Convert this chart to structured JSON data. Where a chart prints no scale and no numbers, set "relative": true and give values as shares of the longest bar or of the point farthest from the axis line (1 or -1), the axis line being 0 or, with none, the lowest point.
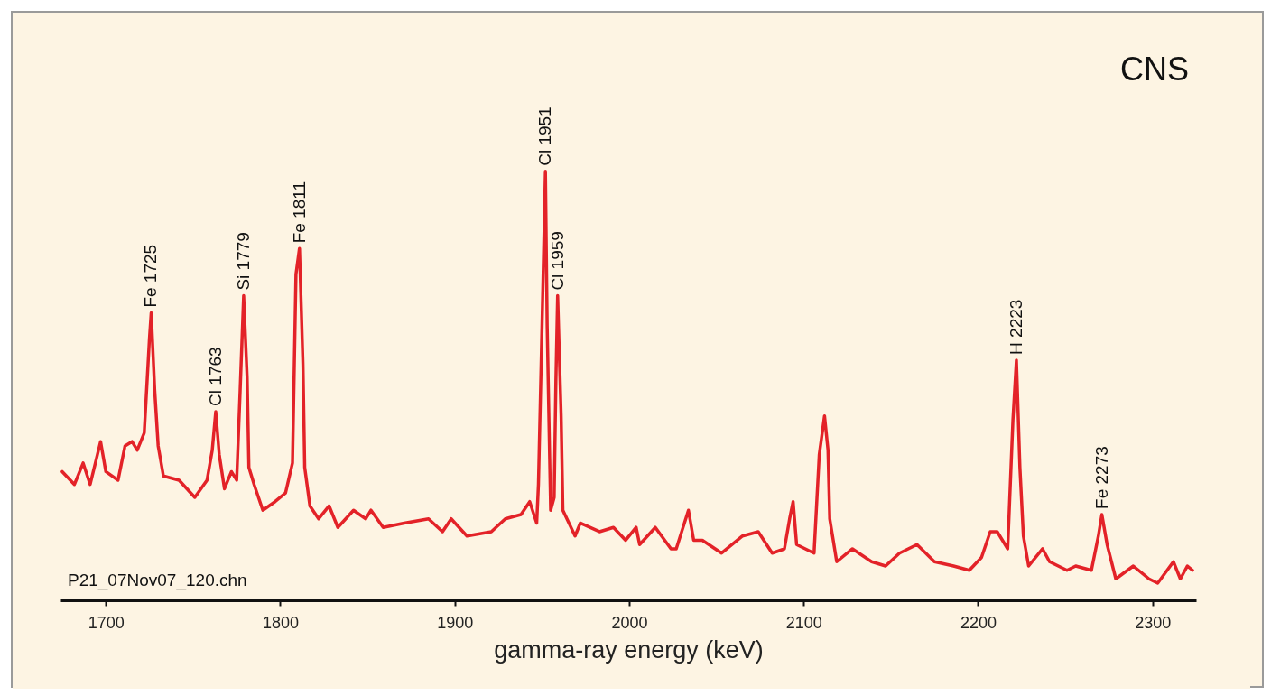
{
  "chart_data": {
    "type": "line",
    "title": "CNS",
    "xlabel": "gamma-ray energy (keV)",
    "relative": true,
    "xlim": [
      1674,
      2325
    ],
    "xticks": [
      1700,
      1800,
      1900,
      2000,
      2100,
      2200,
      2300
    ],
    "grid": false,
    "marker": "none",
    "line_style": "solid",
    "series": [
      {
        "color": "#e32228",
        "x": [
          1675,
          1682,
          1687,
          1691,
          1697,
          1700,
          1707,
          1711,
          1715,
          1718,
          1722,
          1725,
          1726,
          1728,
          1730,
          1733,
          1742,
          1751,
          1758,
          1761,
          1763,
          1765,
          1768,
          1772,
          1775,
          1777,
          1779,
          1781,
          1782,
          1785,
          1790,
          1797,
          1803,
          1807,
          1809,
          1811,
          1813,
          1814,
          1817,
          1822,
          1828,
          1833,
          1842,
          1849,
          1852,
          1859,
          1871,
          1885,
          1893,
          1898,
          1907,
          1921,
          1929,
          1938,
          1943,
          1947,
          1948,
          1950,
          1952,
          1953,
          1955,
          1957,
          1958,
          1959,
          1961,
          1962,
          1969,
          1972,
          1983,
          1991,
          1998,
          2004,
          2006,
          2015,
          2024,
          2027,
          2034,
          2037,
          2042,
          2053,
          2065,
          2074,
          2082,
          2089,
          2092,
          2094,
          2096,
          2106,
          2109,
          2112,
          2114,
          2115,
          2119,
          2128,
          2139,
          2147,
          2155,
          2165,
          2175,
          2186,
          2195,
          2202,
          2207,
          2211,
          2214,
          2217,
          2220,
          2222,
          2224,
          2226,
          2229,
          2237,
          2241,
          2251,
          2256,
          2265,
          2269,
          2271,
          2274,
          2279,
          2289,
          2298,
          2303,
          2312,
          2316,
          2320,
          2323
        ],
        "values": [
          0.3,
          0.27,
          0.32,
          0.27,
          0.37,
          0.3,
          0.28,
          0.36,
          0.37,
          0.35,
          0.39,
          0.61,
          0.67,
          0.49,
          0.36,
          0.29,
          0.28,
          0.24,
          0.28,
          0.35,
          0.44,
          0.34,
          0.26,
          0.3,
          0.28,
          0.49,
          0.71,
          0.52,
          0.31,
          0.27,
          0.21,
          0.23,
          0.25,
          0.32,
          0.76,
          0.82,
          0.55,
          0.31,
          0.22,
          0.19,
          0.22,
          0.17,
          0.21,
          0.19,
          0.21,
          0.17,
          0.18,
          0.19,
          0.16,
          0.19,
          0.15,
          0.16,
          0.19,
          0.2,
          0.23,
          0.18,
          0.27,
          0.63,
          1.0,
          0.64,
          0.21,
          0.24,
          0.51,
          0.71,
          0.43,
          0.21,
          0.15,
          0.18,
          0.16,
          0.17,
          0.14,
          0.17,
          0.13,
          0.17,
          0.12,
          0.12,
          0.21,
          0.14,
          0.14,
          0.11,
          0.15,
          0.16,
          0.11,
          0.12,
          0.19,
          0.23,
          0.13,
          0.11,
          0.34,
          0.43,
          0.35,
          0.19,
          0.09,
          0.12,
          0.09,
          0.08,
          0.11,
          0.13,
          0.09,
          0.08,
          0.07,
          0.1,
          0.16,
          0.16,
          0.14,
          0.12,
          0.42,
          0.56,
          0.31,
          0.15,
          0.08,
          0.12,
          0.09,
          0.07,
          0.08,
          0.07,
          0.15,
          0.2,
          0.13,
          0.05,
          0.08,
          0.05,
          0.04,
          0.09,
          0.05,
          0.08,
          0.07
        ]
      }
    ],
    "annotations": [
      {
        "text": "Fe 1725",
        "x": 1726,
        "y": 0.67
      },
      {
        "text": "Cl 1763",
        "x": 1763,
        "y": 0.44
      },
      {
        "text": "Si 1779",
        "x": 1779,
        "y": 0.71
      },
      {
        "text": "Fe 1811",
        "x": 1811,
        "y": 0.82
      },
      {
        "text": "Cl 1951",
        "x": 1952,
        "y": 1.0
      },
      {
        "text": "Cl 1959",
        "x": 1959,
        "y": 0.71
      },
      {
        "text": "H 2223",
        "x": 2222,
        "y": 0.56
      },
      {
        "text": "Fe 2273",
        "x": 2271,
        "y": 0.2
      },
      "P21_07Nov07_120.chn"
    ]
  }
}
